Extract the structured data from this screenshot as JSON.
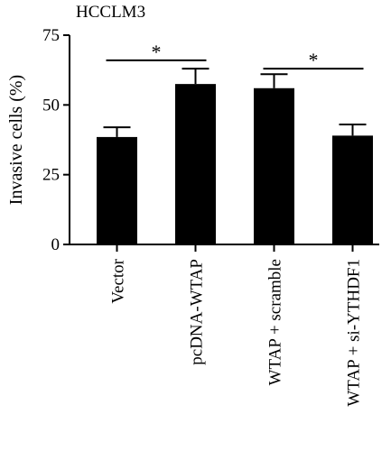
{
  "chart_data": {
    "type": "bar",
    "title": "HCCLM3",
    "xlabel": "",
    "ylabel": "Invasive cells (%)",
    "ylim": [
      0,
      75
    ],
    "yticks": [
      "0",
      "25",
      "50",
      "75"
    ],
    "categories": [
      "Vector",
      "pcDNA-WTAP",
      "WTAP + scramble",
      "WTAP + si-YTHDF1"
    ],
    "values": [
      38.5,
      57.5,
      56,
      39
    ],
    "errors": [
      3.5,
      5.5,
      5,
      4
    ],
    "significance": [
      {
        "from": 0,
        "to": 1,
        "label": "*",
        "y": 66
      },
      {
        "from": 2,
        "to": 3,
        "label": "*",
        "y": 63
      }
    ],
    "bar_color": "#000000",
    "grid": false
  }
}
